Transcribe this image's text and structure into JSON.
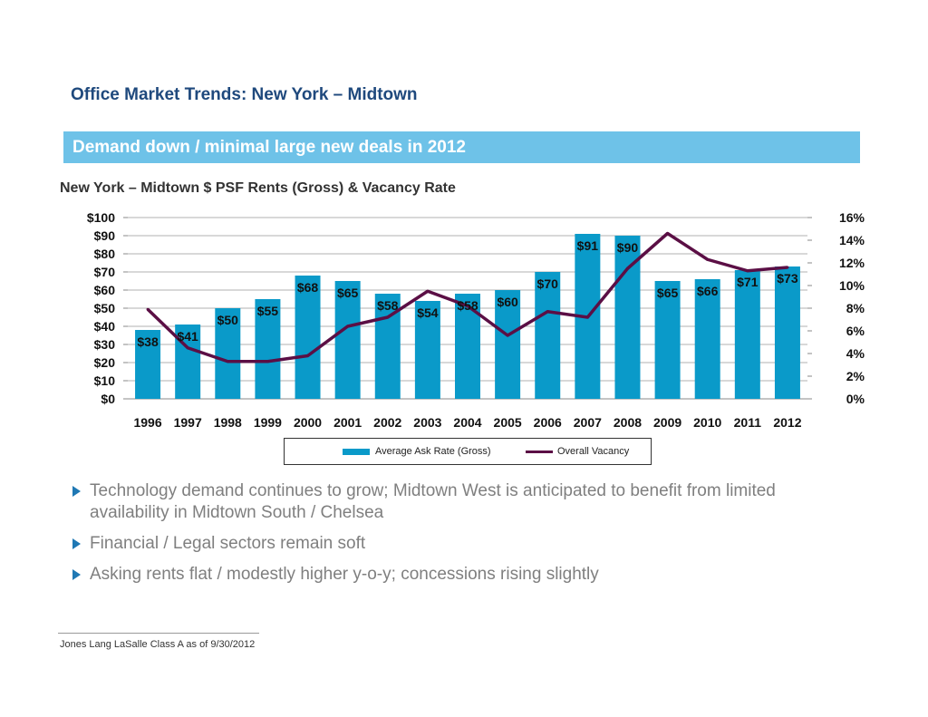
{
  "page": {
    "title": "Office Market Trends: New York – Midtown",
    "banner": "Demand down / minimal large new deals in 2012",
    "bullets": [
      "Technology demand continues to grow; Midtown West is anticipated to benefit from limited availability in Midtown South / Chelsea",
      "Financial / Legal sectors remain soft",
      "Asking rents flat / modestly higher y-o-y; concessions rising slightly"
    ],
    "footer": "Jones Lang LaSalle Class A as of 9/30/2012"
  },
  "colors": {
    "title": "#1f497d",
    "banner": "#6ec2e8",
    "bar": "#0a9ac9",
    "line": "#5b0f45"
  },
  "chart_data": {
    "type": "bar",
    "title": "New York – Midtown $ PSF Rents (Gross) & Vacancy Rate",
    "categories": [
      "1996",
      "1997",
      "1998",
      "1999",
      "2000",
      "2001",
      "2002",
      "2003",
      "2004",
      "2005",
      "2006",
      "2007",
      "2008",
      "2009",
      "2010",
      "2011",
      "2012"
    ],
    "series": [
      {
        "name": "Average Ask Rate (Gross)",
        "type": "bar",
        "axis": "left",
        "values": [
          38,
          41,
          50,
          55,
          68,
          65,
          58,
          54,
          58,
          60,
          70,
          91,
          90,
          65,
          66,
          71,
          73
        ],
        "labels": [
          "$38",
          "$41",
          "$50",
          "$55",
          "$68",
          "$65",
          "$58",
          "$54",
          "$58",
          "$60",
          "$70",
          "$91",
          "$90",
          "$65",
          "$66",
          "$71",
          "$73"
        ]
      },
      {
        "name": "Overall Vacancy",
        "type": "line",
        "axis": "right",
        "values": [
          7.9,
          4.5,
          3.3,
          3.3,
          3.8,
          6.4,
          7.2,
          9.5,
          8.2,
          5.6,
          7.7,
          7.2,
          11.5,
          14.6,
          12.3,
          11.3,
          11.6
        ]
      }
    ],
    "y_left": {
      "min": 0,
      "max": 100,
      "step": 10,
      "ticks": [
        "$0",
        "$10",
        "$20",
        "$30",
        "$40",
        "$50",
        "$60",
        "$70",
        "$80",
        "$90",
        "$100"
      ]
    },
    "y_right": {
      "min": 0,
      "max": 16,
      "step": 2,
      "ticks": [
        "0%",
        "2%",
        "4%",
        "6%",
        "8%",
        "10%",
        "12%",
        "14%",
        "16%"
      ]
    },
    "grid": true,
    "legend": "bottom"
  }
}
